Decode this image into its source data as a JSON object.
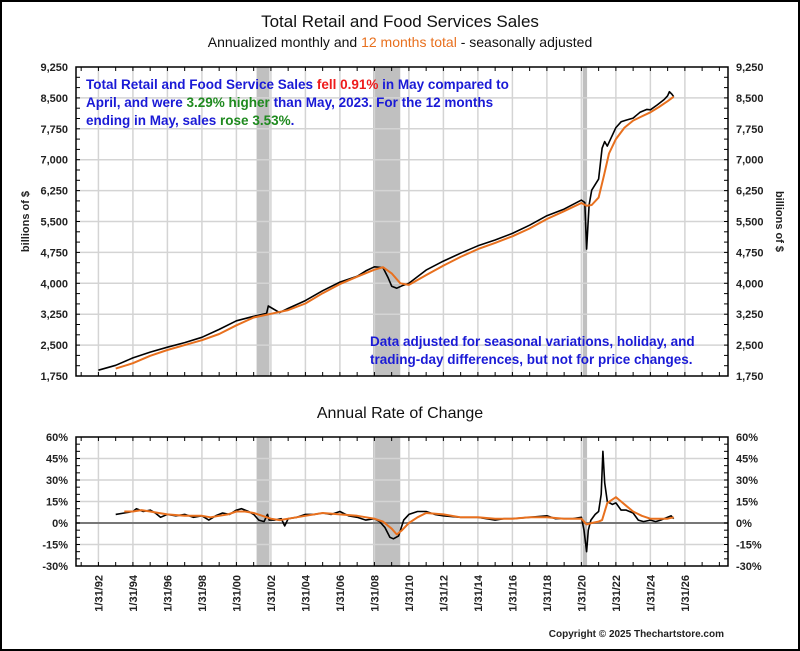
{
  "header": {
    "title": "Total Retail and Food Services Sales",
    "subtitle_pre": "Annualized monthly and ",
    "subtitle_orange": "12 months total",
    "subtitle_post": " - seasonally adjusted"
  },
  "notes": {
    "top": {
      "p1": "Total Retail and Food Service Sales ",
      "p2_red": "fell 0.91%",
      "p3": " in May compared to April, and were ",
      "p4_green": "3.29% higher",
      "p5": " than May, 2023.   For the 12 months ending in May, sales ",
      "p6_green": "rose 3.53%",
      "p7": "."
    },
    "bottom": "Data adjusted for seasonal variations, holiday, and trading-day differences, but not for price changes."
  },
  "footer": {
    "copyright": "Copyright © 2025 Thechartstore.com"
  },
  "colors": {
    "monthly_line": "#000000",
    "twelve_month_line": "#e8701e",
    "recession_band": "#c0c0c0",
    "grid": "#d4d4d4",
    "note_blue": "#1a1ad6",
    "note_red": "#ee1c1c",
    "note_green": "#1f8a1f"
  },
  "chart_data": [
    {
      "type": "line",
      "title": "Total Retail and Food Services Sales",
      "subtitle": "Annualized monthly and 12 months total - seasonally adjusted",
      "ylabel": "billions of $",
      "ylabel_right": "billions of $",
      "ylim": [
        1750,
        9250
      ],
      "yticks": [
        1750,
        2500,
        3250,
        4000,
        4750,
        5500,
        6250,
        7000,
        7750,
        8500,
        9250
      ],
      "ytick_labels": [
        "1,750",
        "2,500",
        "3,250",
        "4,000",
        "4,750",
        "5,500",
        "6,250",
        "7,000",
        "7,750",
        "8,500",
        "9,250"
      ],
      "xlim": [
        1990.7,
        2028.5
      ],
      "grid": true,
      "recessions": [
        [
          2001.17,
          2001.92
        ],
        [
          2007.92,
          2009.5
        ],
        [
          2020.08,
          2020.33
        ]
      ],
      "series": [
        {
          "name": "Annualized monthly",
          "color": "#000000",
          "x": [
            1992.0,
            1993.0,
            1994.0,
            1995.0,
            1996.0,
            1997.0,
            1998.0,
            1999.0,
            2000.0,
            2001.0,
            2001.75,
            2001.85,
            2002.5,
            2003.0,
            2004.0,
            2005.0,
            2006.0,
            2007.0,
            2007.5,
            2008.0,
            2008.5,
            2008.8,
            2009.0,
            2009.3,
            2009.6,
            2010.0,
            2011.0,
            2012.0,
            2013.0,
            2014.0,
            2015.0,
            2016.0,
            2017.0,
            2018.0,
            2019.0,
            2020.0,
            2020.2,
            2020.3,
            2020.45,
            2020.6,
            2021.0,
            2021.2,
            2021.35,
            2021.5,
            2022.0,
            2022.3,
            2022.6,
            2023.0,
            2023.4,
            2023.8,
            2024.0,
            2024.4,
            2024.8,
            2025.0,
            2025.1,
            2025.25,
            2025.35
          ],
          "values": [
            1890,
            2010,
            2190,
            2330,
            2450,
            2560,
            2690,
            2880,
            3090,
            3200,
            3270,
            3450,
            3290,
            3390,
            3580,
            3820,
            4030,
            4170,
            4300,
            4400,
            4380,
            4130,
            3930,
            3880,
            3940,
            4000,
            4320,
            4540,
            4730,
            4910,
            5050,
            5210,
            5410,
            5640,
            5800,
            6020,
            5960,
            4830,
            5900,
            6260,
            6530,
            7280,
            7440,
            7330,
            7780,
            7920,
            7960,
            8010,
            8150,
            8220,
            8210,
            8330,
            8460,
            8550,
            8650,
            8590,
            8530
          ]
        },
        {
          "name": "12 months total",
          "color": "#e8701e",
          "x": [
            1993.0,
            1994.0,
            1995.0,
            1996.0,
            1997.0,
            1998.0,
            1999.0,
            2000.0,
            2001.0,
            2002.0,
            2003.0,
            2004.0,
            2005.0,
            2006.0,
            2007.0,
            2008.0,
            2008.5,
            2009.0,
            2009.5,
            2010.0,
            2011.0,
            2012.0,
            2013.0,
            2014.0,
            2015.0,
            2016.0,
            2017.0,
            2018.0,
            2019.0,
            2020.0,
            2020.3,
            2020.6,
            2021.0,
            2021.3,
            2021.6,
            2022.0,
            2022.5,
            2023.0,
            2023.5,
            2024.0,
            2024.5,
            2025.0,
            2025.35
          ],
          "values": [
            1930,
            2060,
            2240,
            2380,
            2500,
            2620,
            2770,
            2980,
            3170,
            3260,
            3350,
            3510,
            3760,
            3980,
            4160,
            4330,
            4390,
            4240,
            4000,
            3960,
            4200,
            4430,
            4640,
            4830,
            4980,
            5140,
            5330,
            5560,
            5750,
            5950,
            5880,
            5900,
            6080,
            6600,
            7150,
            7500,
            7780,
            7950,
            8050,
            8150,
            8280,
            8420,
            8530
          ]
        }
      ]
    },
    {
      "type": "line",
      "title": "Annual Rate of Change",
      "ylim": [
        -30,
        60
      ],
      "yticks": [
        -30,
        -15,
        0,
        15,
        30,
        45,
        60
      ],
      "ytick_labels": [
        "-30%",
        "-15%",
        "0%",
        "15%",
        "30%",
        "45%",
        "60%"
      ],
      "xlim": [
        1990.7,
        2028.5
      ],
      "xticks": [
        1992,
        1994,
        1996,
        1998,
        2000,
        2002,
        2004,
        2006,
        2008,
        2010,
        2012,
        2014,
        2016,
        2018,
        2020,
        2022,
        2024,
        2026
      ],
      "xtick_labels": [
        "1/31/92",
        "1/31/94",
        "1/31/96",
        "1/31/98",
        "1/31/00",
        "1/31/02",
        "1/31/04",
        "1/31/06",
        "1/31/08",
        "1/31/10",
        "1/31/12",
        "1/31/14",
        "1/31/16",
        "1/31/18",
        "1/31/20",
        "1/31/22",
        "1/31/24",
        "1/31/26"
      ],
      "grid": true,
      "recessions": [
        [
          2001.17,
          2001.92
        ],
        [
          2007.92,
          2009.5
        ],
        [
          2020.08,
          2020.33
        ]
      ],
      "series": [
        {
          "name": "Annualized monthly",
          "color": "#000000",
          "x": [
            1993.0,
            1993.5,
            1994.0,
            1994.2,
            1994.6,
            1995.0,
            1995.3,
            1995.6,
            1996.0,
            1996.5,
            1997.0,
            1997.5,
            1998.0,
            1998.4,
            1998.8,
            1999.2,
            1999.6,
            2000.0,
            2000.3,
            2000.7,
            2001.0,
            2001.3,
            2001.6,
            2001.8,
            2001.9,
            2002.2,
            2002.6,
            2002.8,
            2003.0,
            2003.5,
            2004.0,
            2004.5,
            2005.0,
            2005.5,
            2006.0,
            2006.5,
            2007.0,
            2007.5,
            2008.0,
            2008.3,
            2008.6,
            2008.9,
            2009.1,
            2009.4,
            2009.7,
            2010.0,
            2010.5,
            2011.0,
            2011.5,
            2012.0,
            2013.0,
            2014.0,
            2015.0,
            2015.5,
            2016.0,
            2017.0,
            2018.0,
            2018.5,
            2019.0,
            2019.5,
            2020.0,
            2020.15,
            2020.3,
            2020.4,
            2020.55,
            2020.8,
            2021.0,
            2021.15,
            2021.25,
            2021.35,
            2021.5,
            2021.8,
            2022.0,
            2022.3,
            2022.6,
            2023.0,
            2023.3,
            2023.6,
            2024.0,
            2024.3,
            2024.6,
            2025.0,
            2025.2,
            2025.35
          ],
          "values": [
            6,
            7,
            8,
            10,
            8,
            9,
            7,
            4,
            6,
            5,
            6,
            4,
            5,
            2,
            5,
            7,
            6,
            9,
            10,
            8,
            6,
            2,
            1,
            6,
            2,
            2,
            3,
            -2,
            3,
            4,
            6,
            6,
            7,
            6,
            8,
            5,
            4,
            2,
            3,
            1,
            -3,
            -10,
            -11,
            -9,
            2,
            6,
            8,
            8,
            6,
            5,
            4,
            4,
            2,
            3,
            3,
            4,
            5,
            3,
            3,
            3,
            4,
            -5,
            -20,
            -5,
            2,
            6,
            8,
            20,
            50,
            28,
            15,
            13,
            14,
            9,
            9,
            7,
            2,
            1,
            2,
            1,
            2,
            4,
            5,
            3
          ]
        },
        {
          "name": "12 months total",
          "color": "#e8701e",
          "x": [
            1993.5,
            1994.0,
            1994.5,
            1995.0,
            1995.5,
            1996.0,
            1997.0,
            1998.0,
            1998.5,
            1999.0,
            1999.5,
            2000.0,
            2000.5,
            2001.0,
            2001.5,
            2002.0,
            2002.5,
            2003.0,
            2004.0,
            2005.0,
            2006.0,
            2007.0,
            2008.0,
            2008.5,
            2009.0,
            2009.3,
            2009.6,
            2010.0,
            2010.5,
            2011.0,
            2012.0,
            2013.0,
            2014.0,
            2015.0,
            2016.0,
            2017.0,
            2018.0,
            2019.0,
            2020.0,
            2020.3,
            2020.6,
            2021.0,
            2021.2,
            2021.5,
            2022.0,
            2022.3,
            2022.6,
            2023.0,
            2023.5,
            2024.0,
            2024.5,
            2025.0,
            2025.35
          ],
          "values": [
            8,
            8,
            9,
            8,
            7,
            6,
            5,
            5,
            4,
            5,
            6,
            8,
            8,
            7,
            5,
            3,
            2,
            3,
            5,
            7,
            6,
            5,
            3,
            1,
            -4,
            -8,
            -5,
            0,
            4,
            7,
            6,
            4,
            4,
            3,
            3,
            4,
            4,
            3,
            3,
            -1,
            0,
            1,
            2,
            14,
            18,
            15,
            12,
            8,
            5,
            3,
            3,
            3,
            4
          ]
        }
      ]
    }
  ]
}
